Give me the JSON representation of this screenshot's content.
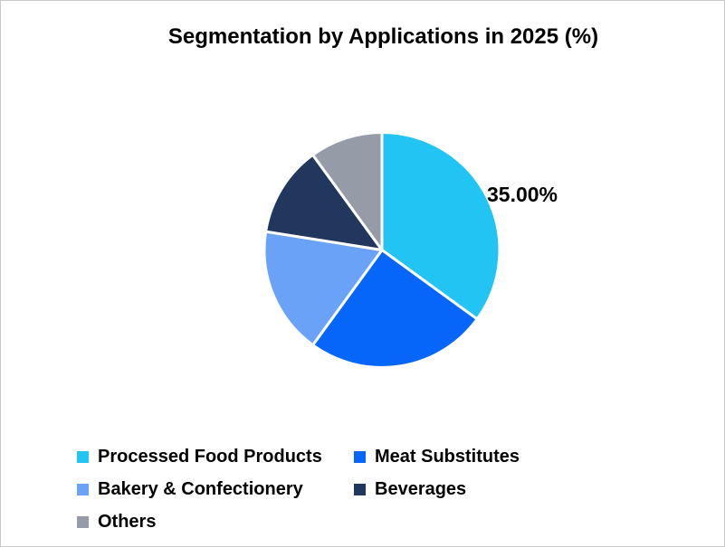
{
  "window": {
    "background": "#ffffff",
    "border_color": "#c9c9c9"
  },
  "chart_data": {
    "type": "pie",
    "title": "Segmentation by Applications in 2025 (%)",
    "legend_position": "bottom-left",
    "start_angle_deg": 0,
    "direction": "clockwise",
    "separator_color": "#ffffff",
    "slices": [
      {
        "label": "Processed Food Products",
        "value": 35,
        "color": "#22C4F4",
        "data_label": "35.00%"
      },
      {
        "label": "Meat Substitutes",
        "value": 25,
        "color": "#0766FA",
        "data_label": ""
      },
      {
        "label": "Bakery & Confectionery",
        "value": 17.5,
        "color": "#6AA2F8",
        "data_label": ""
      },
      {
        "label": "Beverages",
        "value": 12.5,
        "color": "#21375E",
        "data_label": ""
      },
      {
        "label": "Others",
        "value": 10,
        "color": "#959CA8",
        "data_label": ""
      }
    ]
  }
}
